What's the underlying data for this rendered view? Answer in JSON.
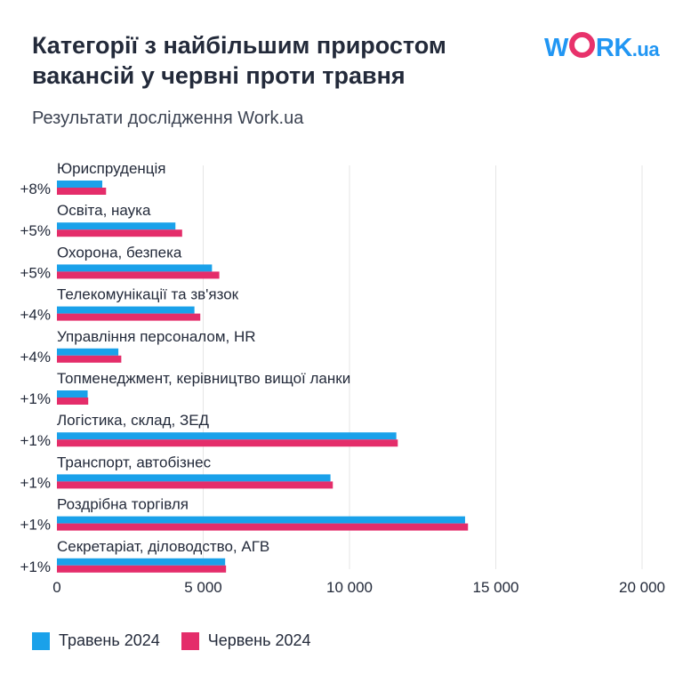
{
  "header": {
    "title": "Категорії з найбільшим приростом вакансій у червні проти травня",
    "subtitle": "Результати дослідження Work.ua",
    "logo_main": "WORK",
    "logo_suffix": ".ua"
  },
  "colors": {
    "may": "#1aa1ea",
    "june": "#e42d6a",
    "grid": "#e6e6e6",
    "text": "#232a3a"
  },
  "chart_data": {
    "type": "bar",
    "orientation": "horizontal",
    "categories": [
      "Юриспруденція",
      "Освіта, наука",
      "Охорона, безпека",
      "Телекомунікації та зв'язок",
      "Управління персоналом, HR",
      "Топменеджмент, керівництво вищої ланки",
      "Логістика, склад, ЗЕД",
      "Транспорт, автобізнес",
      "Роздрібна торгівля",
      "Секретаріат, діловодство, АГВ"
    ],
    "growth_labels": [
      "+8%",
      "+5%",
      "+5%",
      "+4%",
      "+4%",
      "+1%",
      "+1%",
      "+1%",
      "+1%",
      "+1%"
    ],
    "series": [
      {
        "name": "Травень 2024",
        "color": "#1aa1ea",
        "values": [
          1550,
          4050,
          5300,
          4700,
          2100,
          1050,
          11600,
          9350,
          13950,
          5750
        ]
      },
      {
        "name": "Червень 2024",
        "color": "#e42d6a",
        "values": [
          1680,
          4280,
          5550,
          4900,
          2200,
          1070,
          11650,
          9430,
          14050,
          5780
        ]
      }
    ],
    "xlim": [
      0,
      20000
    ],
    "xticks": [
      0,
      5000,
      10000,
      15000,
      20000
    ],
    "xtick_labels": [
      "0",
      "5 000",
      "10 000",
      "15 000",
      "20 000"
    ],
    "grid": true,
    "legend_position": "bottom-left"
  }
}
